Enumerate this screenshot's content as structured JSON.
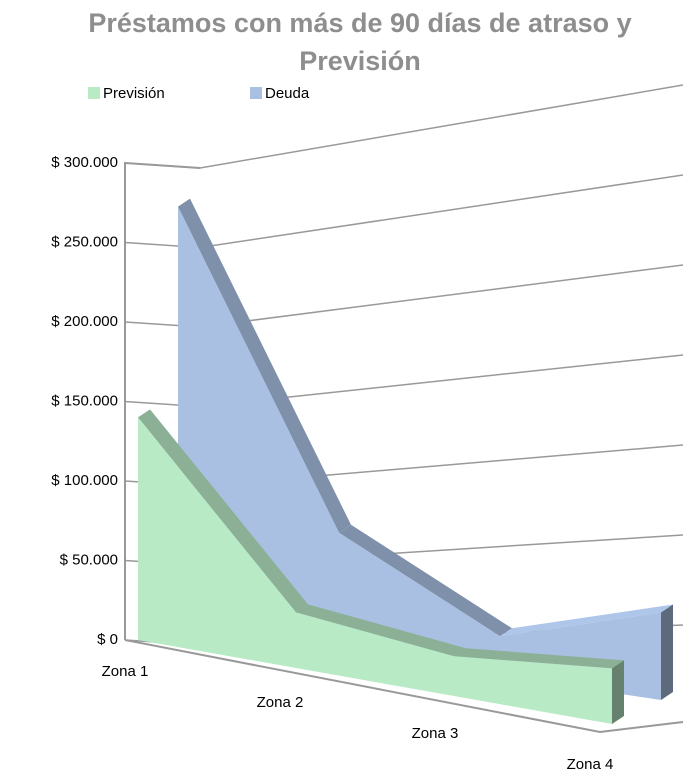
{
  "chart_data": {
    "type": "area3d",
    "title": "Préstamos con más de 90 días de atraso y Previsión",
    "categories": [
      "Zona 1",
      "Zona 2",
      "Zona 3",
      "Zona 4"
    ],
    "series": [
      {
        "name": "Previsión",
        "color": "#b9eac6",
        "values": [
          140000,
          35000,
          25000,
          35000
        ]
      },
      {
        "name": "Deuda",
        "color": "#a9c0e2",
        "values": [
          265000,
          75000,
          25000,
          55000
        ]
      }
    ],
    "ylim": [
      0,
      300000
    ],
    "yticks": [
      {
        "value": 0,
        "label": "$ 0"
      },
      {
        "value": 50000,
        "label": "$ 50.000"
      },
      {
        "value": 100000,
        "label": "$ 100.000"
      },
      {
        "value": 150000,
        "label": "$ 150.000"
      },
      {
        "value": 200000,
        "label": "$ 200.000"
      },
      {
        "value": 250000,
        "label": "$ 250.000"
      },
      {
        "value": 300000,
        "label": "$ 300.000"
      }
    ],
    "grid": true,
    "legend": "top"
  }
}
